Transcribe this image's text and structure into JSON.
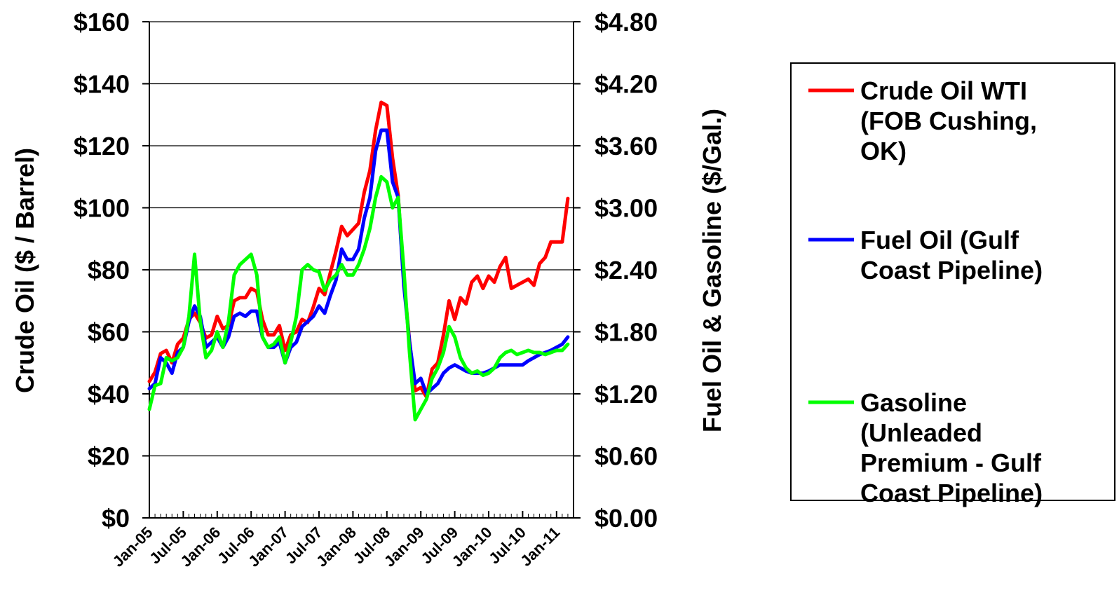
{
  "chart_data": {
    "type": "line",
    "title": "",
    "ylabel_left": "Crude Oil ($ / Barrel)",
    "ylabel_right": "Fuel Oil & Gasoline ($/Gal.)",
    "ylim_left": [
      0,
      160
    ],
    "ylim_right": [
      0,
      4.8
    ],
    "left_ticks": [
      "$0",
      "$20",
      "$40",
      "$60",
      "$80",
      "$100",
      "$120",
      "$140",
      "$160"
    ],
    "right_ticks": [
      "$0.00",
      "$0.60",
      "$1.20",
      "$1.80",
      "$2.40",
      "$3.00",
      "$3.60",
      "$4.20",
      "$4.80"
    ],
    "x_tick_labels": [
      "Jan-05",
      "Jul-05",
      "Jan-06",
      "Jul-06",
      "Jan-07",
      "Jul-07",
      "Jan-08",
      "Jul-08",
      "Jan-09",
      "Jul-09",
      "Jan-10",
      "Jul-10",
      "Jan-11"
    ],
    "x_start": "2005-01",
    "x_end": "2011-04",
    "grid": "horizontal",
    "legend_position": "right",
    "series": [
      {
        "name": "Crude Oil WTI (FOB Cushing, OK)",
        "axis": "left",
        "color": "#ff0000",
        "points": [
          [
            "2005-01",
            44
          ],
          [
            "2005-02",
            47
          ],
          [
            "2005-03",
            53
          ],
          [
            "2005-04",
            54
          ],
          [
            "2005-05",
            50
          ],
          [
            "2005-06",
            56
          ],
          [
            "2005-07",
            58
          ],
          [
            "2005-08",
            64
          ],
          [
            "2005-09",
            66
          ],
          [
            "2005-10",
            63
          ],
          [
            "2005-11",
            58
          ],
          [
            "2005-12",
            59
          ],
          [
            "2006-01",
            65
          ],
          [
            "2006-02",
            61
          ],
          [
            "2006-03",
            62
          ],
          [
            "2006-04",
            70
          ],
          [
            "2006-05",
            71
          ],
          [
            "2006-06",
            71
          ],
          [
            "2006-07",
            74
          ],
          [
            "2006-08",
            73
          ],
          [
            "2006-09",
            64
          ],
          [
            "2006-10",
            59
          ],
          [
            "2006-11",
            59
          ],
          [
            "2006-12",
            62
          ],
          [
            "2007-01",
            54
          ],
          [
            "2007-02",
            59
          ],
          [
            "2007-03",
            60
          ],
          [
            "2007-04",
            64
          ],
          [
            "2007-05",
            63
          ],
          [
            "2007-06",
            68
          ],
          [
            "2007-07",
            74
          ],
          [
            "2007-08",
            72
          ],
          [
            "2007-09",
            79
          ],
          [
            "2007-10",
            86
          ],
          [
            "2007-11",
            94
          ],
          [
            "2007-12",
            91
          ],
          [
            "2008-01",
            93
          ],
          [
            "2008-02",
            95
          ],
          [
            "2008-03",
            105
          ],
          [
            "2008-04",
            112
          ],
          [
            "2008-05",
            125
          ],
          [
            "2008-06",
            134
          ],
          [
            "2008-07",
            133
          ],
          [
            "2008-08",
            116
          ],
          [
            "2008-09",
            104
          ],
          [
            "2008-10",
            76
          ],
          [
            "2008-11",
            57
          ],
          [
            "2008-12",
            41
          ],
          [
            "2009-01",
            42
          ],
          [
            "2009-02",
            39
          ],
          [
            "2009-03",
            48
          ],
          [
            "2009-04",
            50
          ],
          [
            "2009-05",
            59
          ],
          [
            "2009-06",
            70
          ],
          [
            "2009-07",
            64
          ],
          [
            "2009-08",
            71
          ],
          [
            "2009-09",
            69
          ],
          [
            "2009-10",
            76
          ],
          [
            "2009-11",
            78
          ],
          [
            "2009-12",
            74
          ],
          [
            "2010-01",
            78
          ],
          [
            "2010-02",
            76
          ],
          [
            "2010-03",
            81
          ],
          [
            "2010-04",
            84
          ],
          [
            "2010-05",
            74
          ],
          [
            "2010-06",
            75
          ],
          [
            "2010-07",
            76
          ],
          [
            "2010-08",
            77
          ],
          [
            "2010-09",
            75
          ],
          [
            "2010-10",
            82
          ],
          [
            "2010-11",
            84
          ],
          [
            "2010-12",
            89
          ],
          [
            "2011-01",
            89
          ],
          [
            "2011-02",
            89
          ],
          [
            "2011-03",
            103
          ]
        ]
      },
      {
        "name": "Fuel Oil (Gulf Coast Pipeline)",
        "axis": "right",
        "color": "#0000ff",
        "points": [
          [
            "2005-01",
            1.25
          ],
          [
            "2005-02",
            1.3
          ],
          [
            "2005-03",
            1.55
          ],
          [
            "2005-04",
            1.5
          ],
          [
            "2005-05",
            1.4
          ],
          [
            "2005-06",
            1.6
          ],
          [
            "2005-07",
            1.65
          ],
          [
            "2005-08",
            1.9
          ],
          [
            "2005-09",
            2.05
          ],
          [
            "2005-10",
            1.95
          ],
          [
            "2005-11",
            1.65
          ],
          [
            "2005-12",
            1.7
          ],
          [
            "2006-01",
            1.75
          ],
          [
            "2006-02",
            1.65
          ],
          [
            "2006-03",
            1.75
          ],
          [
            "2006-04",
            1.95
          ],
          [
            "2006-05",
            1.98
          ],
          [
            "2006-06",
            1.95
          ],
          [
            "2006-07",
            2.0
          ],
          [
            "2006-08",
            2.0
          ],
          [
            "2006-09",
            1.75
          ],
          [
            "2006-10",
            1.65
          ],
          [
            "2006-11",
            1.65
          ],
          [
            "2006-12",
            1.7
          ],
          [
            "2007-01",
            1.5
          ],
          [
            "2007-02",
            1.65
          ],
          [
            "2007-03",
            1.7
          ],
          [
            "2007-04",
            1.85
          ],
          [
            "2007-05",
            1.9
          ],
          [
            "2007-06",
            1.95
          ],
          [
            "2007-07",
            2.05
          ],
          [
            "2007-08",
            1.98
          ],
          [
            "2007-09",
            2.15
          ],
          [
            "2007-10",
            2.3
          ],
          [
            "2007-11",
            2.6
          ],
          [
            "2007-12",
            2.5
          ],
          [
            "2008-01",
            2.5
          ],
          [
            "2008-02",
            2.6
          ],
          [
            "2008-03",
            2.9
          ],
          [
            "2008-04",
            3.1
          ],
          [
            "2008-05",
            3.55
          ],
          [
            "2008-06",
            3.75
          ],
          [
            "2008-07",
            3.75
          ],
          [
            "2008-08",
            3.25
          ],
          [
            "2008-09",
            3.1
          ],
          [
            "2008-10",
            2.25
          ],
          [
            "2008-11",
            1.7
          ],
          [
            "2008-12",
            1.3
          ],
          [
            "2009-01",
            1.35
          ],
          [
            "2009-02",
            1.2
          ],
          [
            "2009-03",
            1.25
          ],
          [
            "2009-04",
            1.3
          ],
          [
            "2009-05",
            1.4
          ],
          [
            "2009-06",
            1.45
          ],
          [
            "2009-07",
            1.48
          ],
          [
            "2009-08",
            1.45
          ],
          [
            "2009-09",
            1.42
          ],
          [
            "2009-10",
            1.4
          ],
          [
            "2009-11",
            1.4
          ],
          [
            "2009-12",
            1.4
          ],
          [
            "2010-01",
            1.42
          ],
          [
            "2010-02",
            1.45
          ],
          [
            "2010-03",
            1.48
          ],
          [
            "2010-04",
            1.48
          ],
          [
            "2010-05",
            1.48
          ],
          [
            "2010-06",
            1.48
          ],
          [
            "2010-07",
            1.48
          ],
          [
            "2010-08",
            1.52
          ],
          [
            "2010-09",
            1.55
          ],
          [
            "2010-10",
            1.58
          ],
          [
            "2010-11",
            1.6
          ],
          [
            "2010-12",
            1.62
          ],
          [
            "2011-01",
            1.65
          ],
          [
            "2011-02",
            1.68
          ],
          [
            "2011-03",
            1.75
          ]
        ]
      },
      {
        "name": "Gasoline (Unleaded Premium - Gulf Coast Pipeline)",
        "axis": "right",
        "color": "#00ff00",
        "points": [
          [
            "2005-01",
            1.05
          ],
          [
            "2005-02",
            1.28
          ],
          [
            "2005-03",
            1.3
          ],
          [
            "2005-04",
            1.55
          ],
          [
            "2005-05",
            1.52
          ],
          [
            "2005-06",
            1.55
          ],
          [
            "2005-07",
            1.65
          ],
          [
            "2005-08",
            1.95
          ],
          [
            "2005-09",
            2.55
          ],
          [
            "2005-10",
            1.9
          ],
          [
            "2005-11",
            1.55
          ],
          [
            "2005-12",
            1.62
          ],
          [
            "2006-01",
            1.8
          ],
          [
            "2006-02",
            1.65
          ],
          [
            "2006-03",
            1.9
          ],
          [
            "2006-04",
            2.35
          ],
          [
            "2006-05",
            2.45
          ],
          [
            "2006-06",
            2.5
          ],
          [
            "2006-07",
            2.55
          ],
          [
            "2006-08",
            2.35
          ],
          [
            "2006-09",
            1.75
          ],
          [
            "2006-10",
            1.65
          ],
          [
            "2006-11",
            1.68
          ],
          [
            "2006-12",
            1.75
          ],
          [
            "2007-01",
            1.5
          ],
          [
            "2007-02",
            1.7
          ],
          [
            "2007-03",
            1.95
          ],
          [
            "2007-04",
            2.4
          ],
          [
            "2007-05",
            2.45
          ],
          [
            "2007-06",
            2.4
          ],
          [
            "2007-07",
            2.38
          ],
          [
            "2007-08",
            2.2
          ],
          [
            "2007-09",
            2.3
          ],
          [
            "2007-10",
            2.35
          ],
          [
            "2007-11",
            2.45
          ],
          [
            "2007-12",
            2.35
          ],
          [
            "2008-01",
            2.35
          ],
          [
            "2008-02",
            2.45
          ],
          [
            "2008-03",
            2.6
          ],
          [
            "2008-04",
            2.8
          ],
          [
            "2008-05",
            3.1
          ],
          [
            "2008-06",
            3.3
          ],
          [
            "2008-07",
            3.25
          ],
          [
            "2008-08",
            3.0
          ],
          [
            "2008-09",
            3.1
          ],
          [
            "2008-10",
            2.4
          ],
          [
            "2008-11",
            1.6
          ],
          [
            "2008-12",
            0.95
          ],
          [
            "2009-01",
            1.05
          ],
          [
            "2009-02",
            1.15
          ],
          [
            "2009-03",
            1.35
          ],
          [
            "2009-04",
            1.45
          ],
          [
            "2009-05",
            1.6
          ],
          [
            "2009-06",
            1.85
          ],
          [
            "2009-07",
            1.75
          ],
          [
            "2009-08",
            1.55
          ],
          [
            "2009-09",
            1.45
          ],
          [
            "2009-10",
            1.4
          ],
          [
            "2009-11",
            1.42
          ],
          [
            "2009-12",
            1.38
          ],
          [
            "2010-01",
            1.4
          ],
          [
            "2010-02",
            1.45
          ],
          [
            "2010-03",
            1.55
          ],
          [
            "2010-04",
            1.6
          ],
          [
            "2010-05",
            1.62
          ],
          [
            "2010-06",
            1.58
          ],
          [
            "2010-07",
            1.6
          ],
          [
            "2010-08",
            1.62
          ],
          [
            "2010-09",
            1.6
          ],
          [
            "2010-10",
            1.6
          ],
          [
            "2010-11",
            1.58
          ],
          [
            "2010-12",
            1.6
          ],
          [
            "2011-01",
            1.62
          ],
          [
            "2011-02",
            1.62
          ],
          [
            "2011-03",
            1.68
          ]
        ]
      }
    ],
    "legend": [
      {
        "series_index": 0,
        "lines": [
          "Crude Oil WTI",
          "(FOB Cushing,",
          "OK)"
        ]
      },
      {
        "series_index": 1,
        "lines": [
          "Fuel Oil (Gulf",
          "Coast Pipeline)"
        ]
      },
      {
        "series_index": 2,
        "lines": [
          "Gasoline",
          "(Unleaded",
          "Premium - Gulf",
          "Coast Pipeline)"
        ]
      }
    ]
  }
}
